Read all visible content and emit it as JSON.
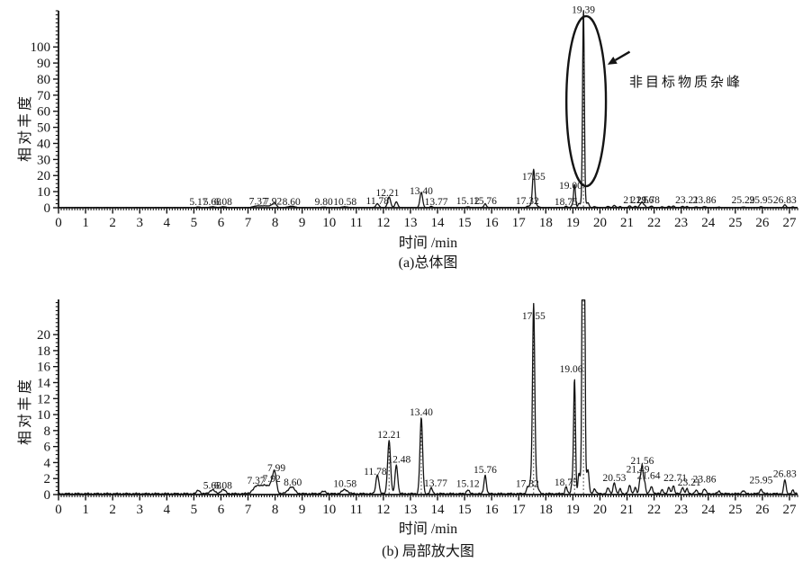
{
  "page": {
    "bg": "#ffffff",
    "ink": "#141414"
  },
  "peaks": [
    {
      "t": 5.17,
      "h": 0.45,
      "w": 0.06
    },
    {
      "t": 5.68,
      "h": 0.5,
      "w": 0.09
    },
    {
      "t": 6.08,
      "h": 0.5,
      "w": 0.09
    },
    {
      "t": 7.37,
      "h": 1.05,
      "w": 0.16
    },
    {
      "t": 7.67,
      "h": 0.8,
      "w": 0.12
    },
    {
      "t": 7.92,
      "h": 1.5,
      "w": 0.1
    },
    {
      "t": 7.99,
      "h": 1.6,
      "w": 0.06
    },
    {
      "t": 8.6,
      "h": 0.85,
      "w": 0.12
    },
    {
      "t": 9.8,
      "h": 0.28,
      "w": 0.09
    },
    {
      "t": 10.58,
      "h": 0.5,
      "w": 0.11
    },
    {
      "t": 11.78,
      "h": 2.4,
      "w": 0.055
    },
    {
      "t": 12.21,
      "h": 6.6,
      "w": 0.055
    },
    {
      "t": 12.48,
      "h": 3.6,
      "w": 0.05
    },
    {
      "t": 13.4,
      "h": 9.4,
      "w": 0.05
    },
    {
      "t": 13.77,
      "h": 0.7,
      "w": 0.045
    },
    {
      "t": 15.12,
      "h": 0.5,
      "w": 0.05
    },
    {
      "t": 15.76,
      "h": 2.3,
      "w": 0.045
    },
    {
      "t": 17.32,
      "h": 0.6,
      "w": 0.045
    },
    {
      "t": 17.55,
      "h": 20.8,
      "w": 0.04
    },
    {
      "t": 17.55,
      "h": 3.0,
      "w": 0.1
    },
    {
      "t": 18.75,
      "h": 0.9,
      "w": 0.04
    },
    {
      "t": 18.97,
      "h": 1.3,
      "w": 0.035
    },
    {
      "t": 19.06,
      "h": 14.4,
      "w": 0.035
    },
    {
      "t": 19.22,
      "h": 2.2,
      "w": 0.035
    },
    {
      "t": 19.39,
      "h": 118,
      "w": 0.032
    },
    {
      "t": 19.39,
      "h": 6,
      "w": 0.07
    },
    {
      "t": 19.56,
      "h": 2.6,
      "w": 0.04
    },
    {
      "t": 19.8,
      "h": 0.6,
      "w": 0.05
    },
    {
      "t": 20.3,
      "h": 0.7,
      "w": 0.045
    },
    {
      "t": 20.53,
      "h": 1.4,
      "w": 0.045
    },
    {
      "t": 20.75,
      "h": 0.6,
      "w": 0.04
    },
    {
      "t": 21.1,
      "h": 1.0,
      "w": 0.045
    },
    {
      "t": 21.3,
      "h": 0.8,
      "w": 0.04
    },
    {
      "t": 21.49,
      "h": 1.9,
      "w": 0.04
    },
    {
      "t": 21.56,
      "h": 3.0,
      "w": 0.033
    },
    {
      "t": 21.64,
      "h": 1.6,
      "w": 0.04
    },
    {
      "t": 21.9,
      "h": 0.9,
      "w": 0.05
    },
    {
      "t": 22.3,
      "h": 0.55,
      "w": 0.04
    },
    {
      "t": 22.55,
      "h": 0.8,
      "w": 0.04
    },
    {
      "t": 22.71,
      "h": 1.05,
      "w": 0.04
    },
    {
      "t": 23.05,
      "h": 0.85,
      "w": 0.04
    },
    {
      "t": 23.21,
      "h": 0.6,
      "w": 0.04
    },
    {
      "t": 23.55,
      "h": 0.4,
      "w": 0.05
    },
    {
      "t": 23.86,
      "h": 0.6,
      "w": 0.05
    },
    {
      "t": 24.4,
      "h": 0.3,
      "w": 0.05
    },
    {
      "t": 25.29,
      "h": 0.4,
      "w": 0.05
    },
    {
      "t": 25.95,
      "h": 0.55,
      "w": 0.05
    },
    {
      "t": 26.83,
      "h": 1.75,
      "w": 0.04
    },
    {
      "t": 27.12,
      "h": 0.45,
      "w": 0.04
    }
  ],
  "chart_data": [
    {
      "id": "chart-a",
      "type": "line",
      "caption": "(a)总体图",
      "xlabel": "时间 /min",
      "ylabel": "相对丰度",
      "xlim": [
        0,
        27.3
      ],
      "ylim": [
        0,
        122.5
      ],
      "xticks": [
        0,
        1,
        2,
        3,
        4,
        5,
        6,
        7,
        8,
        9,
        10,
        11,
        12,
        13,
        14,
        15,
        16,
        17,
        18,
        19,
        20,
        21,
        22,
        23,
        24,
        25,
        26,
        27
      ],
      "yticks": [
        0,
        10,
        20,
        30,
        40,
        50,
        60,
        70,
        80,
        90,
        100
      ],
      "ytick_minor": 2.5,
      "apex_markers": [
        19.39
      ],
      "peak_labels": [
        {
          "text": "5.17",
          "t": 5.17,
          "ly": 1.8
        },
        {
          "text": "5.68",
          "t": 5.68,
          "ly": 1.8
        },
        {
          "text": "6.08",
          "t": 6.08,
          "ly": 1.8
        },
        {
          "text": "7.37",
          "t": 7.37,
          "ly": 2.0
        },
        {
          "text": "7.92",
          "t": 7.92,
          "ly": 2.0
        },
        {
          "text": "8.60",
          "t": 8.6,
          "ly": 1.8
        },
        {
          "text": "9.80",
          "t": 9.8,
          "ly": 1.8
        },
        {
          "text": "10.58",
          "t": 10.58,
          "ly": 1.8
        },
        {
          "text": "11.78",
          "t": 11.78,
          "ly": 2.2
        },
        {
          "text": "12.21",
          "t": 12.21,
          "ly": 7.2,
          "tx": 12.15
        },
        {
          "text": "13.40",
          "t": 13.4,
          "ly": 8.4
        },
        {
          "text": "13.77",
          "t": 13.77,
          "ly": 1.8,
          "tx": 13.95
        },
        {
          "text": "15.12",
          "t": 15.12,
          "ly": 2.2
        },
        {
          "text": "15.76",
          "t": 15.76,
          "ly": 2.2
        },
        {
          "text": "17.32",
          "t": 17.32,
          "ly": 2.2
        },
        {
          "text": "17.55",
          "t": 17.55,
          "ly": 17.3
        },
        {
          "text": "18.75",
          "t": 18.75,
          "ly": 1.6
        },
        {
          "text": "19.00",
          "t": 19.0,
          "ly": 11.7,
          "tx": 18.92
        },
        {
          "text": "19.39",
          "t": 19.39,
          "ly": 121.0
        },
        {
          "text": "21.29",
          "t": 21.29,
          "ly": 2.7
        },
        {
          "text": "21.56",
          "t": 21.56,
          "ly": 2.7
        },
        {
          "text": "21.78",
          "t": 21.78,
          "ly": 2.7
        },
        {
          "text": "23.21",
          "t": 23.21,
          "ly": 2.7
        },
        {
          "text": "23.86",
          "t": 23.86,
          "ly": 2.7
        },
        {
          "text": "25.29",
          "t": 25.29,
          "ly": 2.7
        },
        {
          "text": "25.95",
          "t": 25.95,
          "ly": 2.7
        },
        {
          "text": "26.83",
          "t": 26.83,
          "ly": 2.7
        }
      ],
      "annotation": {
        "text": "非目标物质杂峰",
        "ellipse": {
          "t": 19.49,
          "v": 66.3,
          "rt": 0.73,
          "rv": 52.9
        },
        "arrow": {
          "from_t": 21.1,
          "from_v": 97.0,
          "to_t": 20.28,
          "to_v": 89.0
        }
      }
    },
    {
      "id": "chart-b",
      "type": "line",
      "caption": "(b) 局部放大图",
      "xlabel": "时间 /min",
      "ylabel": "相对丰度",
      "xlim": [
        0,
        27.3
      ],
      "ylim": [
        0,
        24.4
      ],
      "clip": 24.33,
      "xticks": [
        0,
        1,
        2,
        3,
        4,
        5,
        6,
        7,
        8,
        9,
        10,
        11,
        12,
        13,
        14,
        15,
        16,
        17,
        18,
        19,
        20,
        21,
        22,
        23,
        24,
        25,
        26,
        27
      ],
      "yticks": [
        0,
        2,
        4,
        6,
        8,
        10,
        12,
        14,
        16,
        18,
        20
      ],
      "ytick_minor": 0.5,
      "apex_markers": [
        12.21,
        13.4,
        17.55,
        19.06,
        19.39
      ],
      "peak_labels": [
        {
          "text": "5.68",
          "t": 5.68,
          "ly": 0.75
        },
        {
          "text": "6.08",
          "t": 6.08,
          "ly": 0.75
        },
        {
          "text": "7.37",
          "t": 7.37,
          "ly": 1.35,
          "tx": 7.3
        },
        {
          "text": "7.92",
          "t": 7.92,
          "ly": 1.6,
          "tx": 7.87
        },
        {
          "text": "7.99",
          "t": 7.99,
          "ly": 2.9,
          "tx": 8.05
        },
        {
          "text": "8.60",
          "t": 8.6,
          "ly": 1.1,
          "tx": 8.65
        },
        {
          "text": "10.58",
          "t": 10.58,
          "ly": 0.95
        },
        {
          "text": "11.78",
          "t": 11.78,
          "ly": 2.5,
          "tx": 11.7
        },
        {
          "text": "12.21",
          "t": 12.21,
          "ly": 7.1
        },
        {
          "text": "12.48",
          "t": 12.48,
          "ly": 4.0,
          "tx": 12.58
        },
        {
          "text": "13.40",
          "t": 13.4,
          "ly": 9.9
        },
        {
          "text": "13.77",
          "t": 13.77,
          "ly": 1.0,
          "tx": 13.93
        },
        {
          "text": "15.12",
          "t": 15.12,
          "ly": 0.95
        },
        {
          "text": "15.76",
          "t": 15.76,
          "ly": 2.7
        },
        {
          "text": "17.32",
          "t": 17.32,
          "ly": 0.95
        },
        {
          "text": "17.55",
          "t": 17.55,
          "ly": 21.9
        },
        {
          "text": "18.75",
          "t": 18.75,
          "ly": 1.15
        },
        {
          "text": "19.06",
          "t": 19.06,
          "ly": 15.3,
          "tx": 18.94
        },
        {
          "text": "20.53",
          "t": 20.53,
          "ly": 1.7
        },
        {
          "text": "21.49",
          "t": 21.49,
          "ly": 2.75,
          "tx": 21.4
        },
        {
          "text": "21.56",
          "t": 21.56,
          "ly": 3.85
        },
        {
          "text": "21.64",
          "t": 21.64,
          "ly": 1.95,
          "tx": 21.8
        },
        {
          "text": "22.71",
          "t": 22.71,
          "ly": 1.7,
          "tx": 22.78
        },
        {
          "text": "23.21",
          "t": 23.21,
          "ly": 1.15,
          "tx": 23.3
        },
        {
          "text": "23.86",
          "t": 23.86,
          "ly": 1.5
        },
        {
          "text": "25.95",
          "t": 25.95,
          "ly": 1.4
        },
        {
          "text": "26.83",
          "t": 26.83,
          "ly": 2.2
        }
      ]
    }
  ]
}
